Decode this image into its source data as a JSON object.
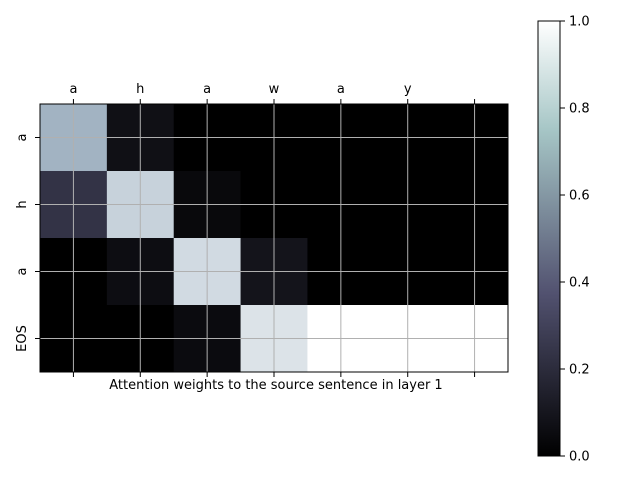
{
  "chart_data": {
    "type": "heatmap",
    "title": "",
    "xlabel": "Attention weights to the source sentence in layer 1",
    "ylabel": "",
    "x_tick_labels": [
      "a",
      "h",
      "a",
      "w",
      "a",
      "y",
      ""
    ],
    "y_tick_labels": [
      "a",
      "h",
      "a",
      "EOS"
    ],
    "values": [
      [
        0.73,
        0.07,
        0.0,
        0.0,
        0.0,
        0.0,
        0.0
      ],
      [
        0.23,
        0.84,
        0.04,
        0.0,
        0.0,
        0.0,
        0.0
      ],
      [
        0.0,
        0.06,
        0.87,
        0.09,
        0.0,
        0.0,
        0.0
      ],
      [
        0.0,
        0.0,
        0.05,
        0.9,
        1.0,
        1.0,
        1.0
      ]
    ],
    "colorbar": {
      "min": 0.0,
      "max": 1.0,
      "ticks": [
        0.0,
        0.2,
        0.4,
        0.6,
        0.8,
        1.0
      ],
      "tick_labels": [
        "0.0",
        "0.2",
        "0.4",
        "0.6",
        "0.8",
        "1.0"
      ],
      "colormap": "bone"
    },
    "grid": true,
    "x_ticks_position": "top"
  }
}
